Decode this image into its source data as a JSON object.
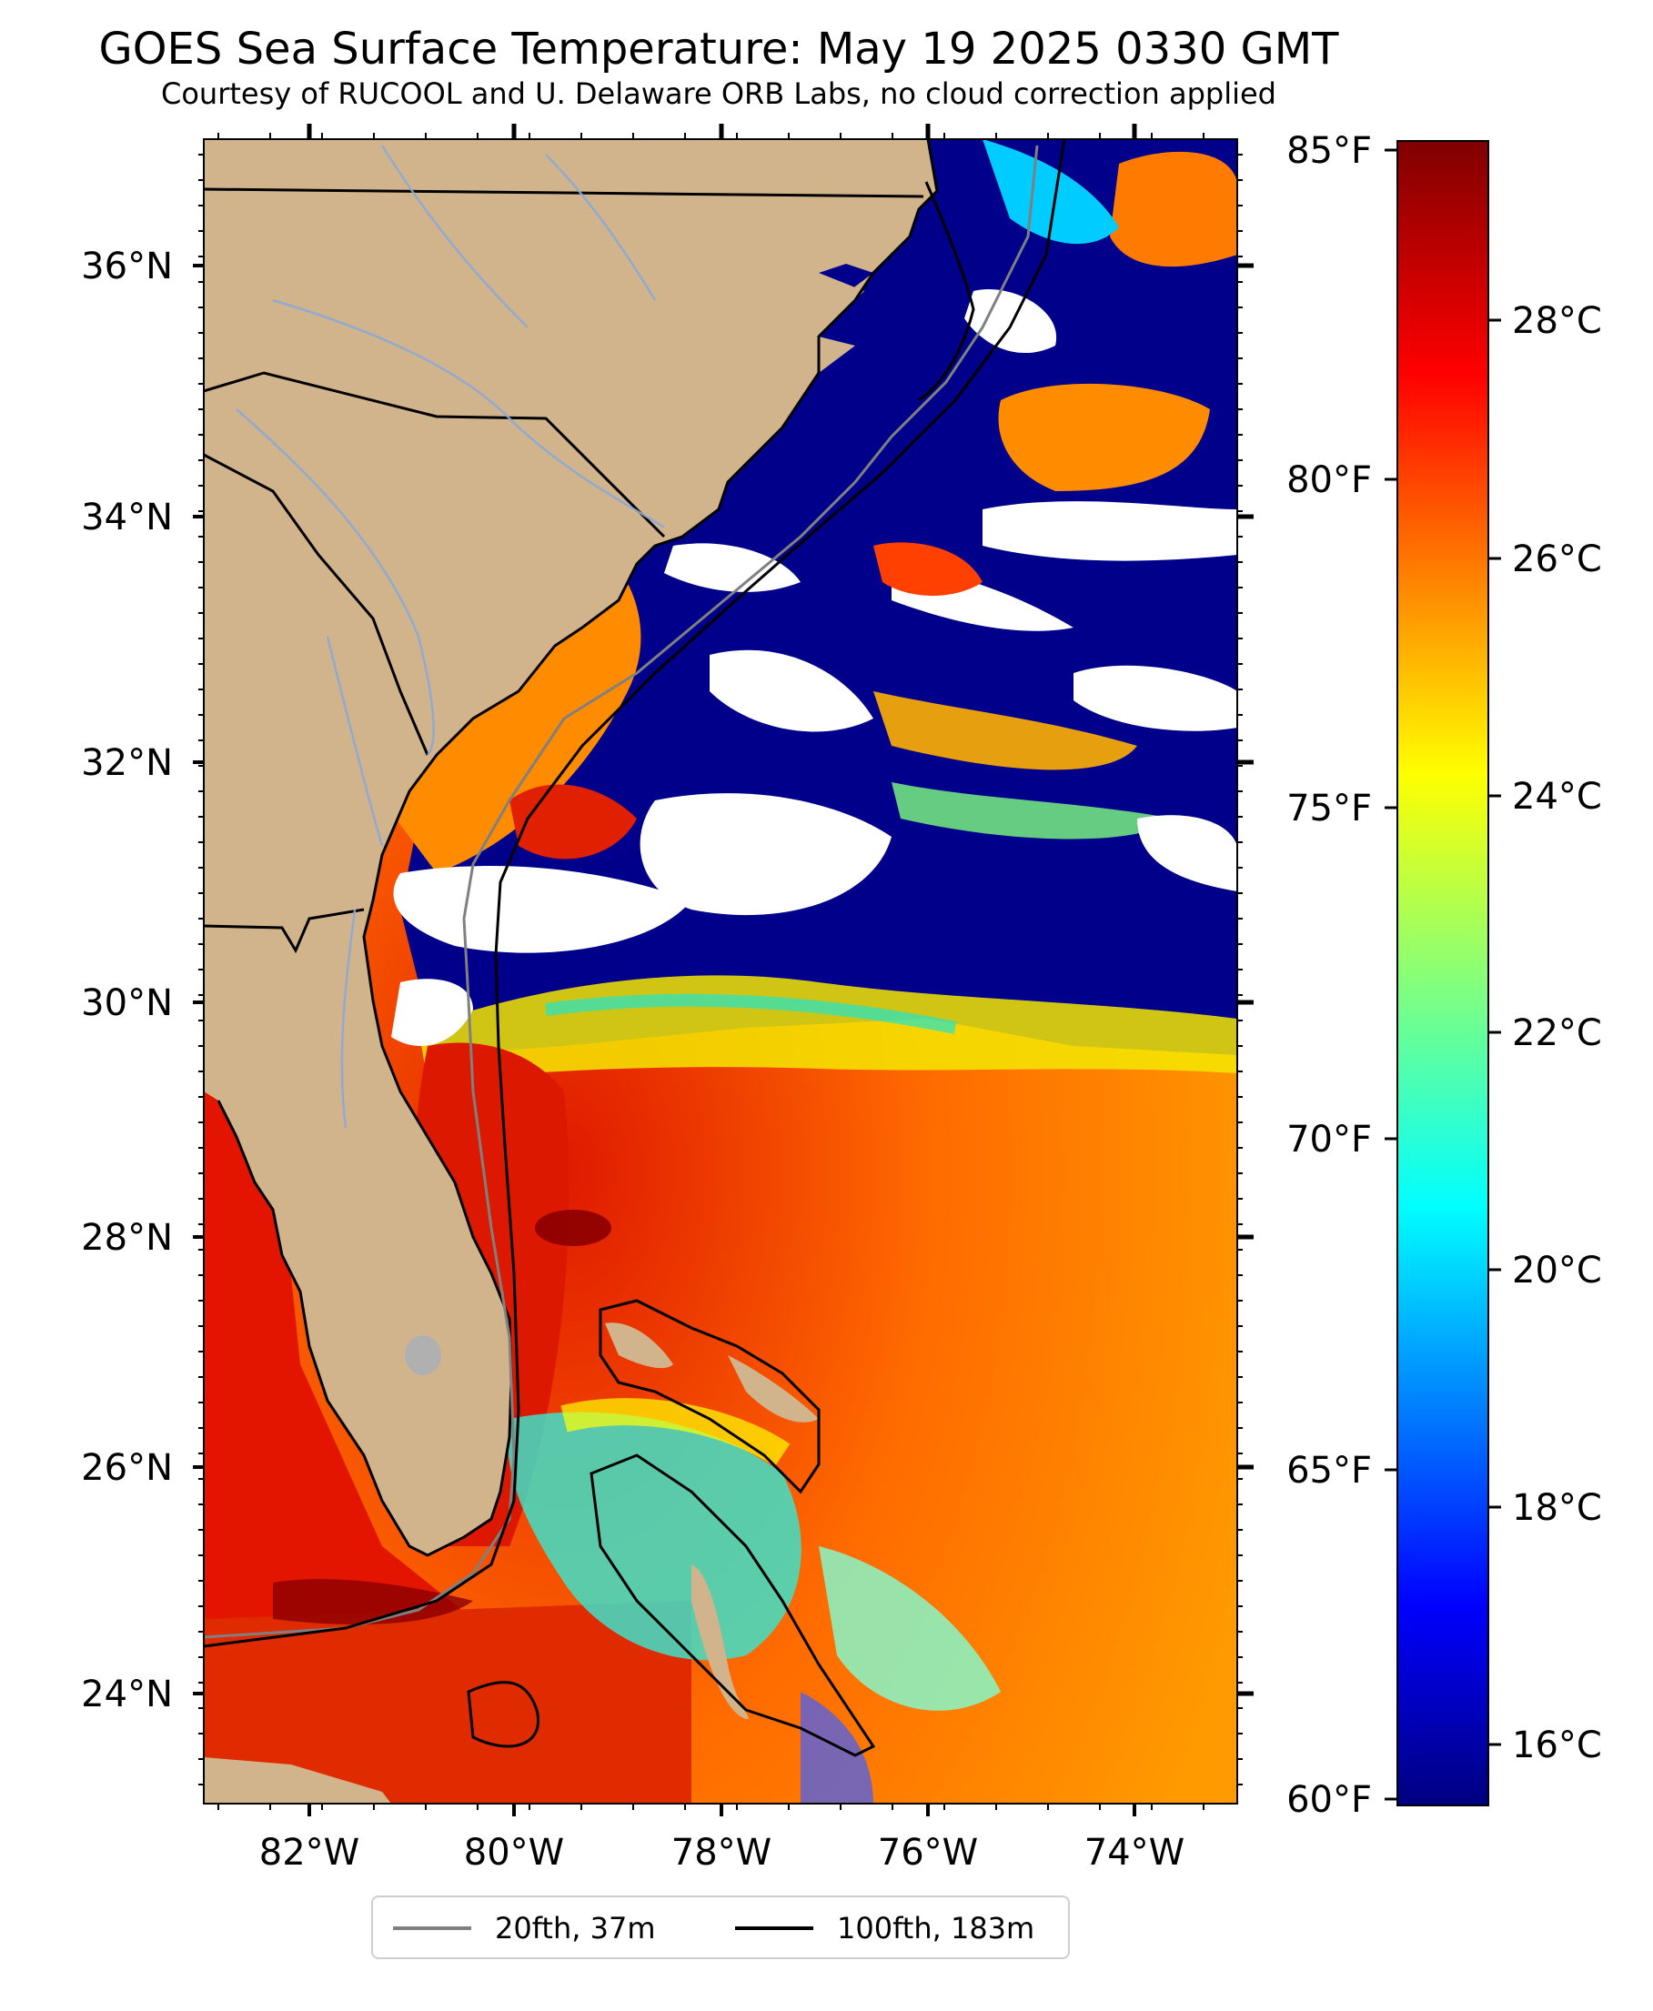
{
  "title": "GOES Sea Surface Temperature: May 19 2025 0330 GMT",
  "subtitle": "Courtesy of RUCOOL and U. Delaware ORB Labs, no cloud correction applied",
  "map": {
    "lat_labels": [
      "36°N",
      "34°N",
      "32°N",
      "30°N",
      "28°N",
      "26°N",
      "24°N"
    ],
    "lon_labels": [
      "82°W",
      "80°W",
      "78°W",
      "76°W",
      "74°W"
    ],
    "colors": {
      "land": "#d2b48c",
      "cloud": "#ffffff",
      "rivers": "#8aa9d6",
      "coast": "#000000"
    }
  },
  "colorbar": {
    "fahrenheit_labels": [
      "85°F",
      "80°F",
      "75°F",
      "70°F",
      "65°F",
      "60°F"
    ],
    "celsius_labels": [
      "28°C",
      "26°C",
      "24°C",
      "22°C",
      "20°C",
      "18°C",
      "16°C"
    ],
    "colormap": "jet"
  },
  "legend": [
    {
      "label": "20fth, 37m",
      "color": "#808080"
    },
    {
      "label": "100fth, 183m",
      "color": "#000000"
    }
  ]
}
